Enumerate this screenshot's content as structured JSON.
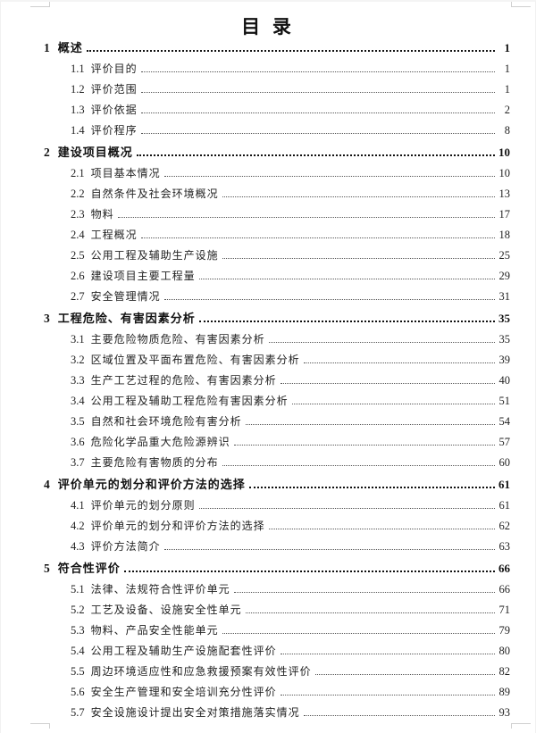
{
  "page": {
    "title": "目 录"
  },
  "colors": {
    "text": "#1a1a1a",
    "leader": "#333333",
    "crop": "#cfcfcf",
    "page_bg": "#ffffff"
  },
  "toc": {
    "chapters": [
      {
        "num": "1",
        "label": "概述",
        "page": "1",
        "items": [
          {
            "num": "1.1",
            "label": "评价目的",
            "page": "1"
          },
          {
            "num": "1.2",
            "label": "评价范围",
            "page": "1"
          },
          {
            "num": "1.3",
            "label": "评价依据",
            "page": "2"
          },
          {
            "num": "1.4",
            "label": "评价程序",
            "page": "8"
          }
        ]
      },
      {
        "num": "2",
        "label": "建设项目概况",
        "page": "10",
        "items": [
          {
            "num": "2.1",
            "label": "项目基本情况",
            "page": "10"
          },
          {
            "num": "2.2",
            "label": "自然条件及社会环境概况",
            "page": "13"
          },
          {
            "num": "2.3",
            "label": "物料",
            "page": "17"
          },
          {
            "num": "2.4",
            "label": "工程概况",
            "page": "18"
          },
          {
            "num": "2.5",
            "label": "公用工程及辅助生产设施",
            "page": "25"
          },
          {
            "num": "2.6",
            "label": "建设项目主要工程量",
            "page": "29"
          },
          {
            "num": "2.7",
            "label": "安全管理情况",
            "page": "31"
          }
        ]
      },
      {
        "num": "3",
        "label": "工程危险、有害因素分析",
        "page": "35",
        "items": [
          {
            "num": "3.1",
            "label": "主要危险物质危险、有害因素分析",
            "page": "35"
          },
          {
            "num": "3.2",
            "label": "区域位置及平面布置危险、有害因素分析",
            "page": "39"
          },
          {
            "num": "3.3",
            "label": "生产工艺过程的危险、有害因素分析",
            "page": "40"
          },
          {
            "num": "3.4",
            "label": "公用工程及辅助工程危险有害因素分析",
            "page": "51"
          },
          {
            "num": "3.5",
            "label": "自然和社会环境危险有害分析",
            "page": "54"
          },
          {
            "num": "3.6",
            "label": "危险化学品重大危险源辨识",
            "page": "57"
          },
          {
            "num": "3.7",
            "label": "主要危险有害物质的分布",
            "page": "60"
          }
        ]
      },
      {
        "num": "4",
        "label": "评价单元的划分和评价方法的选择",
        "page": "61",
        "items": [
          {
            "num": "4.1",
            "label": "评价单元的划分原则",
            "page": "61"
          },
          {
            "num": "4.2",
            "label": "评价单元的划分和评价方法的选择",
            "page": "62"
          },
          {
            "num": "4.3",
            "label": "评价方法简介",
            "page": "63"
          }
        ]
      },
      {
        "num": "5",
        "label": "符合性评价",
        "page": "66",
        "items": [
          {
            "num": "5.1",
            "label": "法律、法规符合性评价单元",
            "page": "66"
          },
          {
            "num": "5.2",
            "label": "工艺及设备、设施安全性单元",
            "page": "71"
          },
          {
            "num": "5.3",
            "label": "物料、产品安全性能单元",
            "page": "79"
          },
          {
            "num": "5.4",
            "label": "公用工程及辅助生产设施配套性评价",
            "page": "80"
          },
          {
            "num": "5.5",
            "label": "周边环境适应性和应急救援预案有效性评价",
            "page": "82"
          },
          {
            "num": "5.6",
            "label": "安全生产管理和安全培训充分性评价",
            "page": "89"
          },
          {
            "num": "5.7",
            "label": "安全设施设计提出安全对策措施落实情况",
            "page": "93"
          }
        ]
      }
    ]
  }
}
